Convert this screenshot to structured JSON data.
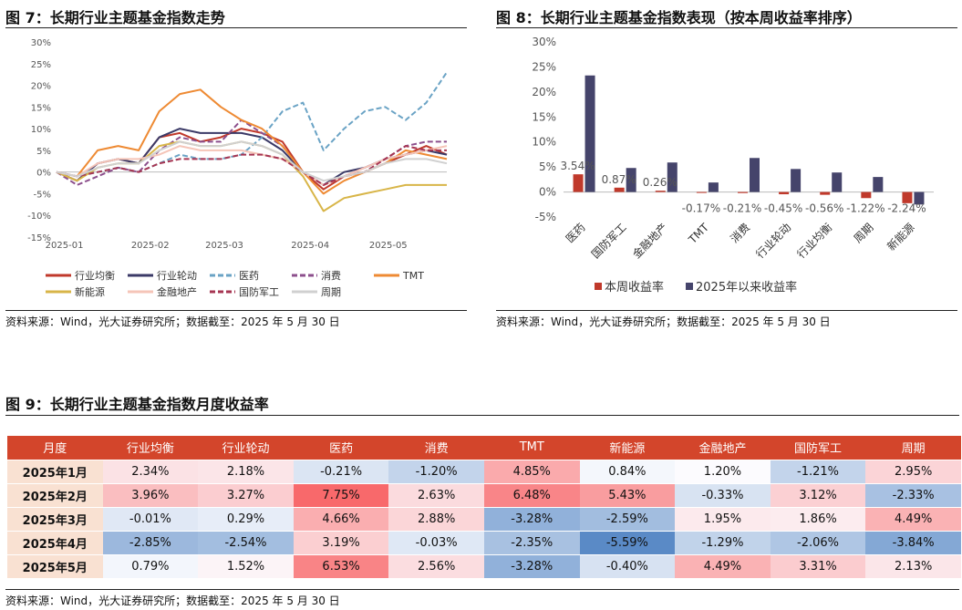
{
  "fig7": {
    "title": "图 7：长期行业主题基金指数走势",
    "source": "资料来源：Wind，光大证券研究所；数据截至：2025 年 5 月 30 日"
  },
  "fig8": {
    "title": "图 8：长期行业主题基金指数表现（按本周收益率排序）",
    "source": "资料来源：Wind，光大证券研究所；数据截至：2025 年 5 月 30 日"
  },
  "fig9": {
    "title": "图 9：长期行业主题基金指数月度收益率",
    "source": "资料来源：Wind，光大证券研究所；数据截至：2025 年 5 月 30 日"
  },
  "chart_data": [
    {
      "type": "line",
      "title": "",
      "x_ticks": [
        "2025-01",
        "2025-02",
        "2025-03",
        "2025-04",
        "2025-05"
      ],
      "y_ticks": [
        "30%",
        "25%",
        "20%",
        "15%",
        "10%",
        "5%",
        "0%",
        "-5%",
        "-10%",
        "-15%"
      ],
      "ylim": [
        -15,
        30
      ],
      "grid": false,
      "legend_position": "bottom",
      "series": [
        {
          "name": "行业均衡",
          "color": "#c0392b",
          "dash": "solid",
          "values": [
            0,
            -2,
            2,
            3,
            2,
            8,
            9,
            7,
            8,
            10,
            9,
            7,
            0,
            -4,
            -1,
            0,
            2,
            4,
            6,
            4
          ]
        },
        {
          "name": "行业轮动",
          "color": "#3b3a67",
          "dash": "solid",
          "values": [
            0,
            -2,
            2,
            3,
            2,
            8,
            10,
            9,
            9,
            9,
            8,
            5,
            0,
            -3,
            0,
            1,
            3,
            4,
            5,
            4
          ]
        },
        {
          "name": "医药",
          "color": "#6aa3c5",
          "dash": "dashed",
          "values": [
            0,
            -1,
            0,
            1,
            0,
            2,
            4,
            3,
            3,
            4,
            8,
            14,
            16,
            5,
            10,
            14,
            15,
            12,
            16,
            23
          ]
        },
        {
          "name": "消费",
          "color": "#8c4f8c",
          "dash": "dashed",
          "values": [
            0,
            -3,
            -1,
            1,
            0,
            5,
            8,
            7,
            7,
            12,
            9,
            6,
            0,
            -3,
            -1,
            1,
            3,
            6,
            7,
            7
          ]
        },
        {
          "name": "TMT",
          "color": "#ee8a33",
          "dash": "solid",
          "values": [
            0,
            -1,
            5,
            6,
            5,
            14,
            18,
            19,
            15,
            12,
            10,
            6,
            0,
            -5,
            -2,
            0,
            2,
            5,
            4,
            3
          ]
        },
        {
          "name": "新能源",
          "color": "#d8b548",
          "dash": "solid",
          "values": [
            0,
            -2,
            1,
            2,
            2,
            6,
            7,
            6,
            6,
            7,
            6,
            4,
            -1,
            -9,
            -6,
            -5,
            -4,
            -3,
            -3,
            -3
          ]
        },
        {
          "name": "金融地产",
          "color": "#f5c5b8",
          "dash": "solid",
          "values": [
            0,
            -1,
            2,
            3,
            3,
            4,
            6,
            5,
            5,
            5,
            4,
            3,
            0,
            -3,
            -1,
            1,
            3,
            4,
            5,
            6
          ]
        },
        {
          "name": "国防军工",
          "color": "#a63552",
          "dash": "dashed",
          "values": [
            0,
            -1,
            0,
            1,
            0,
            2,
            3,
            3,
            3,
            4,
            4,
            3,
            0,
            -3,
            -1,
            0,
            3,
            6,
            5,
            5
          ]
        },
        {
          "name": "周期",
          "color": "#d0d0d0",
          "dash": "solid",
          "values": [
            0,
            -1,
            1,
            2,
            2,
            5,
            7,
            6,
            6,
            7,
            6,
            4,
            0,
            -2,
            -1,
            0,
            2,
            3,
            3,
            2
          ]
        }
      ]
    },
    {
      "type": "bar",
      "title": "",
      "categories": [
        "医药",
        "国防军工",
        "金融地产",
        "TMT",
        "消费",
        "行业轮动",
        "行业均衡",
        "周期",
        "新能源"
      ],
      "y_ticks": [
        "30%",
        "25%",
        "20%",
        "15%",
        "10%",
        "5%",
        "0%",
        "-5%"
      ],
      "ylim": [
        -5,
        30
      ],
      "legend_position": "bottom",
      "series": [
        {
          "name": "本周收益率",
          "color": "#c0392b",
          "values": [
            3.54,
            0.87,
            0.26,
            -0.17,
            -0.21,
            -0.45,
            -0.56,
            -1.22,
            -2.24
          ],
          "labels": [
            "3.54%",
            "0.87%",
            "0.26%",
            "-0.17%",
            "-0.21%",
            "-0.45%",
            "-0.56%",
            "-1.22%",
            "-2.24%"
          ]
        },
        {
          "name": "2025年以来收益率",
          "color": "#45446b",
          "values": [
            23.3,
            4.8,
            5.9,
            1.9,
            6.8,
            4.6,
            3.9,
            3.0,
            -2.5
          ]
        }
      ]
    },
    {
      "type": "table",
      "columns": [
        "月度",
        "行业均衡",
        "行业轮动",
        "医药",
        "消费",
        "TMT",
        "新能源",
        "金融地产",
        "国防军工",
        "周期"
      ],
      "rows": [
        {
          "month": "2025年1月",
          "values": [
            2.34,
            2.18,
            -0.21,
            -1.2,
            4.85,
            0.84,
            1.2,
            -1.21,
            2.95
          ],
          "labels": [
            "2.34%",
            "2.18%",
            "-0.21%",
            "-1.20%",
            "4.85%",
            "0.84%",
            "1.20%",
            "-1.21%",
            "2.95%"
          ]
        },
        {
          "month": "2025年2月",
          "values": [
            3.96,
            3.27,
            7.75,
            2.63,
            6.48,
            5.43,
            -0.33,
            3.12,
            -2.33
          ],
          "labels": [
            "3.96%",
            "3.27%",
            "7.75%",
            "2.63%",
            "6.48%",
            "5.43%",
            "-0.33%",
            "3.12%",
            "-2.33%"
          ]
        },
        {
          "month": "2025年3月",
          "values": [
            -0.01,
            0.29,
            4.66,
            2.88,
            -3.28,
            -2.59,
            1.95,
            1.86,
            4.49
          ],
          "labels": [
            "-0.01%",
            "0.29%",
            "4.66%",
            "2.88%",
            "-3.28%",
            "-2.59%",
            "1.95%",
            "1.86%",
            "4.49%"
          ]
        },
        {
          "month": "2025年4月",
          "values": [
            -2.85,
            -2.54,
            3.19,
            -0.03,
            -2.35,
            -5.59,
            -1.29,
            -2.06,
            -3.84
          ],
          "labels": [
            "-2.85%",
            "-2.54%",
            "3.19%",
            "-0.03%",
            "-2.35%",
            "-5.59%",
            "-1.29%",
            "-2.06%",
            "-3.84%"
          ]
        },
        {
          "month": "2025年5月",
          "values": [
            0.79,
            1.52,
            6.53,
            2.56,
            -3.28,
            -0.4,
            4.49,
            3.31,
            2.13
          ],
          "labels": [
            "0.79%",
            "1.52%",
            "6.53%",
            "2.56%",
            "-3.28%",
            "-0.40%",
            "4.49%",
            "3.31%",
            "2.13%"
          ]
        }
      ]
    }
  ]
}
